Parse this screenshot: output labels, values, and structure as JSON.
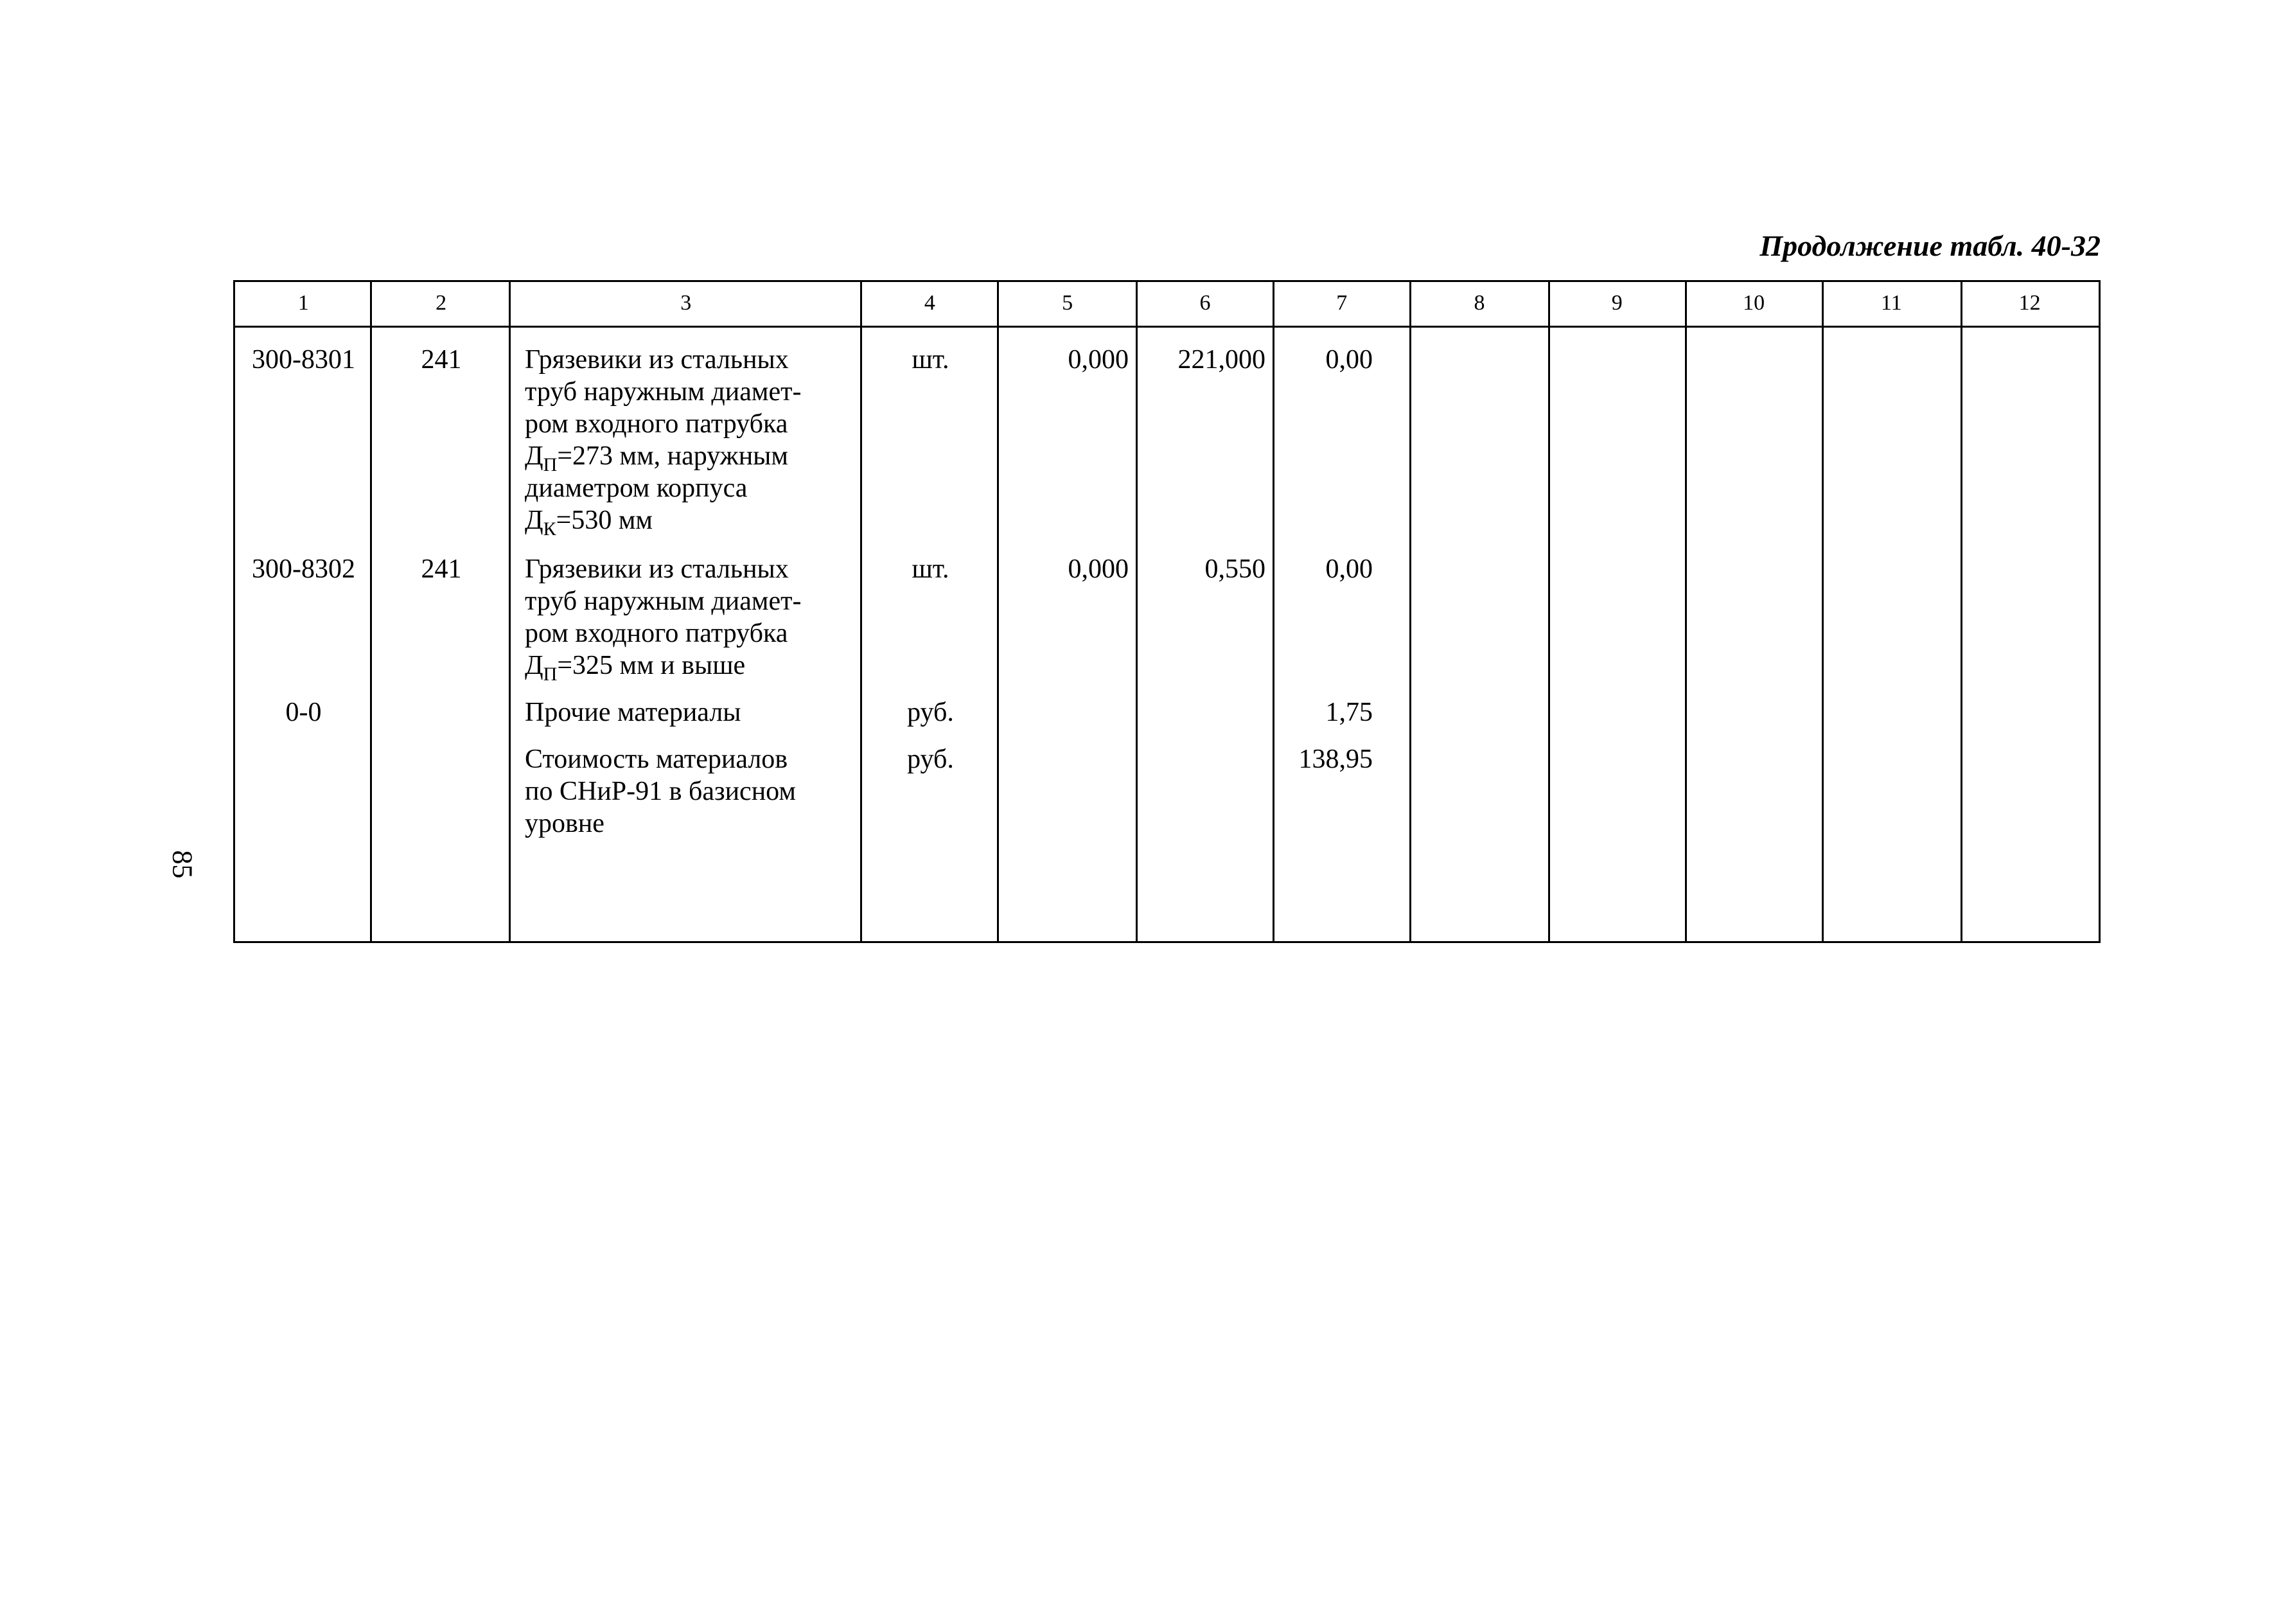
{
  "title": "Продолжение табл. 40-32",
  "page_number": "85",
  "table": {
    "headers": [
      "1",
      "2",
      "3",
      "4",
      "5",
      "6",
      "7",
      "8",
      "9",
      "10",
      "11",
      "12"
    ],
    "rows": [
      {
        "code": "300-8301",
        "num": "241",
        "desc": {
          "l1": "Грязевики из стальных",
          "l2": "труб наружным диамет-",
          "l3": "ром входного патрубка",
          "l4_pre": "Д",
          "l4_sub": "П",
          "l4_post": "=273 мм, наружным",
          "l5": "диаметром корпуса",
          "l6_pre": "Д",
          "l6_sub": "К",
          "l6_post": "=530 мм"
        },
        "unit": "шт.",
        "c5": "0,000",
        "c6": "221,000",
        "c7": "0,00"
      },
      {
        "code": "300-8302",
        "num": "241",
        "desc": {
          "l1": "Грязевики из стальных",
          "l2": "труб наружным диамет-",
          "l3": "ром входного патрубка",
          "l4_pre": "Д",
          "l4_sub": "П",
          "l4_post": "=325 мм и выше"
        },
        "unit": "шт.",
        "c5": "0,000",
        "c6": "0,550",
        "c7": "0,00"
      },
      {
        "code": "0-0",
        "desc": {
          "l1": "Прочие материалы"
        },
        "unit": "руб.",
        "c7": "1,75"
      },
      {
        "desc": {
          "l1": "Стоимость материалов",
          "l2": "по СНиР-91 в базисном",
          "l3": "уровне"
        },
        "unit": "руб.",
        "c7": "138,95"
      }
    ]
  }
}
